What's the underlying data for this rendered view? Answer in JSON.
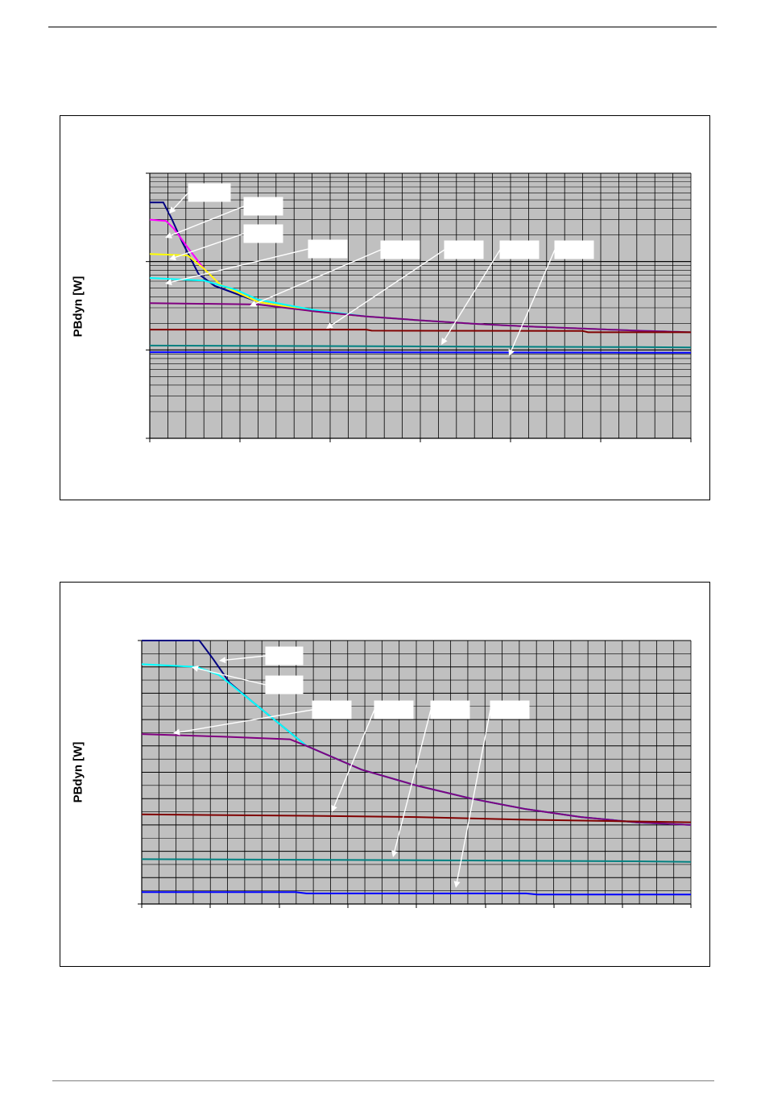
{
  "charts": [
    {
      "ylabel": "PBdyn [W]",
      "colors": {
        "plot_bg": "#c0c0c0",
        "grid": "#000000"
      },
      "series": [
        {
          "color": "#000080",
          "label_text": "",
          "points": [
            [
              0,
              0.89
            ],
            [
              0.025,
              0.89
            ],
            [
              0.04,
              0.83
            ],
            [
              0.06,
              0.74
            ],
            [
              0.09,
              0.62
            ],
            [
              0.12,
              0.575
            ],
            [
              0.2,
              0.515
            ],
            [
              0.3,
              0.48
            ],
            [
              0.4,
              0.46
            ],
            [
              0.5,
              0.445
            ],
            [
              0.6,
              0.432
            ],
            [
              0.7,
              0.422
            ],
            [
              0.8,
              0.414
            ],
            [
              0.9,
              0.406
            ],
            [
              1.0,
              0.4
            ]
          ]
        },
        {
          "color": "#ff00ff",
          "label_text": "",
          "points": [
            [
              0,
              0.825
            ],
            [
              0.03,
              0.82
            ],
            [
              0.045,
              0.79
            ],
            [
              0.07,
              0.72
            ],
            [
              0.1,
              0.64
            ],
            [
              0.13,
              0.58
            ],
            [
              0.2,
              0.515
            ],
            [
              0.3,
              0.48
            ],
            [
              0.4,
              0.46
            ],
            [
              0.5,
              0.445
            ],
            [
              0.6,
              0.432
            ],
            [
              0.7,
              0.422
            ],
            [
              0.8,
              0.414
            ],
            [
              0.9,
              0.406
            ],
            [
              1.0,
              0.4
            ]
          ]
        },
        {
          "color": "#ffff00",
          "label_text": "",
          "points": [
            [
              0,
              0.695
            ],
            [
              0.07,
              0.69
            ],
            [
              0.1,
              0.64
            ],
            [
              0.13,
              0.58
            ],
            [
              0.2,
              0.515
            ],
            [
              0.3,
              0.48
            ],
            [
              0.4,
              0.46
            ],
            [
              0.5,
              0.445
            ],
            [
              0.6,
              0.432
            ],
            [
              0.7,
              0.422
            ],
            [
              0.8,
              0.414
            ],
            [
              0.9,
              0.406
            ],
            [
              1.0,
              0.4
            ]
          ]
        },
        {
          "color": "#00ffff",
          "label_text": "",
          "points": [
            [
              0,
              0.605
            ],
            [
              0.1,
              0.595
            ],
            [
              0.16,
              0.56
            ],
            [
              0.2,
              0.523
            ],
            [
              0.3,
              0.485
            ],
            [
              0.4,
              0.46
            ],
            [
              0.5,
              0.445
            ],
            [
              0.6,
              0.432
            ],
            [
              0.7,
              0.422
            ],
            [
              0.8,
              0.414
            ],
            [
              0.9,
              0.406
            ],
            [
              1.0,
              0.4
            ]
          ]
        },
        {
          "color": "#800080",
          "label_text": "",
          "points": [
            [
              0,
              0.51
            ],
            [
              0.2,
              0.505
            ],
            [
              0.3,
              0.48
            ],
            [
              0.4,
              0.46
            ],
            [
              0.5,
              0.445
            ],
            [
              0.6,
              0.432
            ],
            [
              0.7,
              0.422
            ],
            [
              0.8,
              0.414
            ],
            [
              0.9,
              0.406
            ],
            [
              1.0,
              0.4
            ]
          ]
        },
        {
          "color": "#800000",
          "label_text": "",
          "points": [
            [
              0,
              0.41
            ],
            [
              0.4,
              0.41
            ],
            [
              0.41,
              0.406
            ],
            [
              0.8,
              0.405
            ],
            [
              0.81,
              0.4
            ],
            [
              1.0,
              0.4
            ]
          ]
        },
        {
          "color": "#008080",
          "label_text": "",
          "points": [
            [
              0,
              0.35
            ],
            [
              0.3,
              0.348
            ],
            [
              0.6,
              0.346
            ],
            [
              0.9,
              0.344
            ],
            [
              1.0,
              0.343
            ]
          ]
        },
        {
          "color": "#0000ff",
          "label_text": "",
          "points": [
            [
              0,
              0.325
            ],
            [
              0.3,
              0.325
            ],
            [
              0.5,
              0.324
            ],
            [
              0.9,
              0.323
            ],
            [
              1.0,
              0.323
            ]
          ]
        }
      ]
    },
    {
      "ylabel": "PBdyn [W]",
      "colors": {
        "plot_bg": "#c0c0c0",
        "grid": "#000000"
      },
      "series": [
        {
          "color": "#000080",
          "label_text": "",
          "points": [
            [
              0,
              1.0
            ],
            [
              0.105,
              1.0
            ],
            [
              0.13,
              0.93
            ],
            [
              0.16,
              0.84
            ],
            [
              0.2,
              0.77
            ],
            [
              0.3,
              0.6
            ],
            [
              0.4,
              0.51
            ],
            [
              0.5,
              0.45
            ],
            [
              0.6,
              0.4
            ],
            [
              0.7,
              0.36
            ],
            [
              0.8,
              0.33
            ],
            [
              0.9,
              0.31
            ],
            [
              1.0,
              0.3
            ]
          ]
        },
        {
          "color": "#00ffff",
          "label_text": "",
          "points": [
            [
              0,
              0.91
            ],
            [
              0.1,
              0.9
            ],
            [
              0.14,
              0.87
            ],
            [
              0.2,
              0.77
            ],
            [
              0.3,
              0.6
            ],
            [
              0.4,
              0.51
            ],
            [
              0.5,
              0.45
            ],
            [
              0.6,
              0.4
            ],
            [
              0.7,
              0.36
            ],
            [
              0.8,
              0.33
            ],
            [
              0.9,
              0.31
            ],
            [
              1.0,
              0.3
            ]
          ]
        },
        {
          "color": "#800080",
          "label_text": "",
          "points": [
            [
              0,
              0.645
            ],
            [
              0.15,
              0.635
            ],
            [
              0.27,
              0.625
            ],
            [
              0.3,
              0.6
            ],
            [
              0.4,
              0.51
            ],
            [
              0.5,
              0.45
            ],
            [
              0.6,
              0.4
            ],
            [
              0.7,
              0.36
            ],
            [
              0.8,
              0.33
            ],
            [
              0.9,
              0.31
            ],
            [
              1.0,
              0.3
            ]
          ]
        },
        {
          "color": "#800000",
          "label_text": "",
          "points": [
            [
              0,
              0.34
            ],
            [
              0.3,
              0.335
            ],
            [
              0.5,
              0.33
            ],
            [
              0.7,
              0.32
            ],
            [
              0.85,
              0.315
            ],
            [
              1.0,
              0.31
            ]
          ]
        },
        {
          "color": "#008080",
          "label_text": "",
          "points": [
            [
              0,
              0.17
            ],
            [
              0.3,
              0.168
            ],
            [
              0.6,
              0.165
            ],
            [
              0.9,
              0.162
            ],
            [
              1.0,
              0.16
            ]
          ]
        },
        {
          "color": "#0000ff",
          "label_text": "",
          "points": [
            [
              0,
              0.045
            ],
            [
              0.28,
              0.045
            ],
            [
              0.3,
              0.04
            ],
            [
              0.7,
              0.04
            ],
            [
              0.72,
              0.036
            ],
            [
              1.0,
              0.036
            ]
          ]
        }
      ]
    }
  ]
}
